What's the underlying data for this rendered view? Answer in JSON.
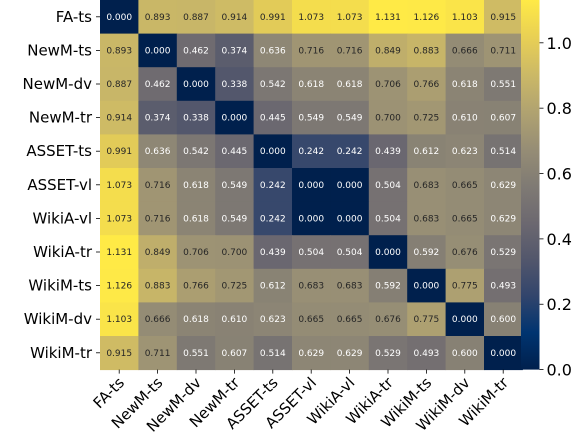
{
  "chart_data": {
    "type": "heatmap",
    "colormap": "cividis",
    "vmin": 0.0,
    "vmax": 1.131,
    "rows": [
      "FA-ts",
      "NewM-ts",
      "NewM-dv",
      "NewM-tr",
      "ASSET-ts",
      "ASSET-vl",
      "WikiA-vl",
      "WikiA-tr",
      "WikiM-ts",
      "WikiM-dv",
      "WikiM-tr"
    ],
    "columns": [
      "FA-ts",
      "NewM-ts",
      "NewM-dv",
      "NewM-tr",
      "ASSET-ts",
      "ASSET-vl",
      "WikiA-vl",
      "WikiA-tr",
      "WikiM-ts",
      "WikiM-dv",
      "WikiM-tr"
    ],
    "values": [
      [
        "0.000",
        "0.893",
        "0.887",
        "0.914",
        "0.991",
        "1.073",
        "1.073",
        "1.131",
        "1.126",
        "1.103",
        "0.915"
      ],
      [
        "0.893",
        "0.000",
        "0.462",
        "0.374",
        "0.636",
        "0.716",
        "0.716",
        "0.849",
        "0.883",
        "0.666",
        "0.711"
      ],
      [
        "0.887",
        "0.462",
        "0.000",
        "0.338",
        "0.542",
        "0.618",
        "0.618",
        "0.706",
        "0.766",
        "0.618",
        "0.551"
      ],
      [
        "0.914",
        "0.374",
        "0.338",
        "0.000",
        "0.445",
        "0.549",
        "0.549",
        "0.700",
        "0.725",
        "0.610",
        "0.607"
      ],
      [
        "0.991",
        "0.636",
        "0.542",
        "0.445",
        "0.000",
        "0.242",
        "0.242",
        "0.439",
        "0.612",
        "0.623",
        "0.514"
      ],
      [
        "1.073",
        "0.716",
        "0.618",
        "0.549",
        "0.242",
        "0.000",
        "0.000",
        "0.504",
        "0.683",
        "0.665",
        "0.629"
      ],
      [
        "1.073",
        "0.716",
        "0.618",
        "0.549",
        "0.242",
        "0.000",
        "0.000",
        "0.504",
        "0.683",
        "0.665",
        "0.629"
      ],
      [
        "1.131",
        "0.849",
        "0.706",
        "0.700",
        "0.439",
        "0.504",
        "0.504",
        "0.000",
        "0.592",
        "0.676",
        "0.529"
      ],
      [
        "1.126",
        "0.883",
        "0.766",
        "0.725",
        "0.612",
        "0.683",
        "0.683",
        "0.592",
        "0.000",
        "0.775",
        "0.493"
      ],
      [
        "1.103",
        "0.666",
        "0.618",
        "0.610",
        "0.623",
        "0.665",
        "0.665",
        "0.676",
        "0.775",
        "0.000",
        "0.600"
      ],
      [
        "0.915",
        "0.711",
        "0.551",
        "0.607",
        "0.514",
        "0.629",
        "0.629",
        "0.529",
        "0.493",
        "0.600",
        "0.000"
      ]
    ],
    "colorbar": {
      "ticks": [
        "0.0",
        "0.2",
        "0.4",
        "0.6",
        "0.8",
        "1.0"
      ],
      "tick_values": [
        0.0,
        0.2,
        0.4,
        0.6,
        0.8,
        1.0
      ]
    }
  }
}
